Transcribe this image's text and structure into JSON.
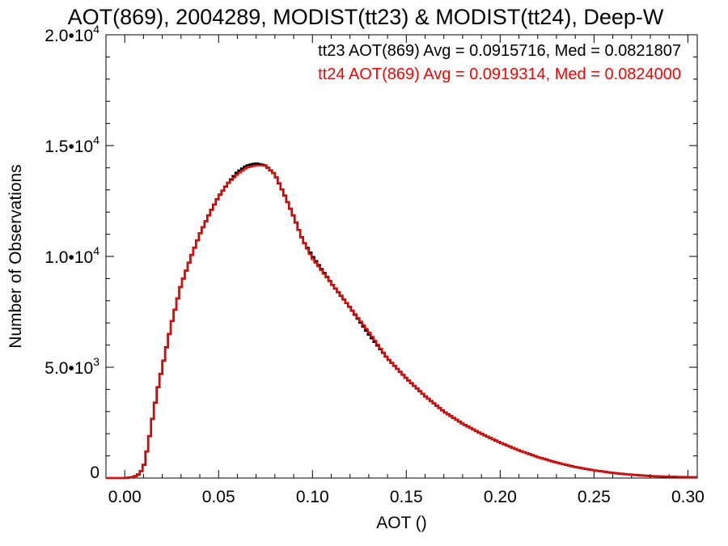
{
  "chart_data": {
    "type": "histogram-step",
    "title": "AOT(869), 2004289, MODIST(tt23) & MODIST(tt24), Deep-W",
    "xlabel": "AOT ()",
    "ylabel": "Number of Observations",
    "xlim": [
      -0.01,
      0.305
    ],
    "ylim": [
      0,
      20000
    ],
    "xticks": [
      {
        "value": 0.0,
        "label": "0.00"
      },
      {
        "value": 0.05,
        "label": "0.05"
      },
      {
        "value": 0.1,
        "label": "0.10"
      },
      {
        "value": 0.15,
        "label": "0.15"
      },
      {
        "value": 0.2,
        "label": "0.20"
      },
      {
        "value": 0.25,
        "label": "0.25"
      },
      {
        "value": 0.3,
        "label": "0.30"
      }
    ],
    "yticks": [
      {
        "value": 0,
        "mantissa": "0",
        "exponent": ""
      },
      {
        "value": 5000,
        "mantissa": "5.0•10",
        "exponent": "3"
      },
      {
        "value": 10000,
        "mantissa": "1.0•10",
        "exponent": "4"
      },
      {
        "value": 15000,
        "mantissa": "1.5•10",
        "exponent": "4"
      },
      {
        "value": 20000,
        "mantissa": "2.0•10",
        "exponent": "4"
      }
    ],
    "stats": [
      {
        "text": "tt23 AOT(869) Avg = 0.0915716, Med = 0.0821807",
        "color": "#000000"
      },
      {
        "text": "tt24 AOT(869) Avg = 0.0919314, Med = 0.0824000",
        "color": "#ff0000"
      }
    ],
    "series": [
      {
        "name": "tt23",
        "color": "#000000",
        "x": [
          -0.01,
          -0.005,
          0.0,
          0.005,
          0.008,
          0.01,
          0.0125,
          0.015,
          0.0175,
          0.02,
          0.025,
          0.03,
          0.035,
          0.04,
          0.045,
          0.05,
          0.055,
          0.06,
          0.065,
          0.07,
          0.075,
          0.08,
          0.085,
          0.09,
          0.095,
          0.1,
          0.11,
          0.12,
          0.13,
          0.14,
          0.15,
          0.16,
          0.17,
          0.18,
          0.19,
          0.2,
          0.21,
          0.22,
          0.23,
          0.24,
          0.25,
          0.26,
          0.27,
          0.28,
          0.29,
          0.3,
          0.305
        ],
        "y": [
          0,
          0,
          0,
          50,
          200,
          500,
          1500,
          2800,
          4000,
          5000,
          7000,
          8700,
          9900,
          11000,
          11900,
          12700,
          13300,
          13800,
          14100,
          14200,
          14100,
          13700,
          12800,
          11800,
          10700,
          10000,
          8800,
          7700,
          6500,
          5400,
          4500,
          3700,
          3000,
          2450,
          2000,
          1600,
          1250,
          950,
          700,
          500,
          350,
          230,
          150,
          90,
          60,
          40,
          40
        ]
      },
      {
        "name": "tt24",
        "color": "#ff0000",
        "x": [
          -0.01,
          -0.005,
          0.0,
          0.005,
          0.008,
          0.01,
          0.0125,
          0.015,
          0.0175,
          0.02,
          0.025,
          0.03,
          0.035,
          0.04,
          0.045,
          0.05,
          0.055,
          0.06,
          0.065,
          0.07,
          0.075,
          0.08,
          0.085,
          0.09,
          0.095,
          0.1,
          0.11,
          0.12,
          0.13,
          0.14,
          0.15,
          0.16,
          0.17,
          0.18,
          0.19,
          0.2,
          0.21,
          0.22,
          0.23,
          0.24,
          0.25,
          0.26,
          0.27,
          0.28,
          0.29,
          0.3,
          0.305
        ],
        "y": [
          0,
          0,
          0,
          50,
          200,
          500,
          1500,
          2800,
          4000,
          5000,
          7000,
          8700,
          9900,
          11000,
          11900,
          12700,
          13300,
          13700,
          14000,
          14100,
          14100,
          13700,
          12800,
          11800,
          10700,
          9900,
          8800,
          7700,
          6600,
          5400,
          4500,
          3700,
          3000,
          2450,
          2000,
          1600,
          1250,
          950,
          700,
          500,
          350,
          230,
          150,
          90,
          60,
          40,
          40
        ]
      }
    ]
  }
}
